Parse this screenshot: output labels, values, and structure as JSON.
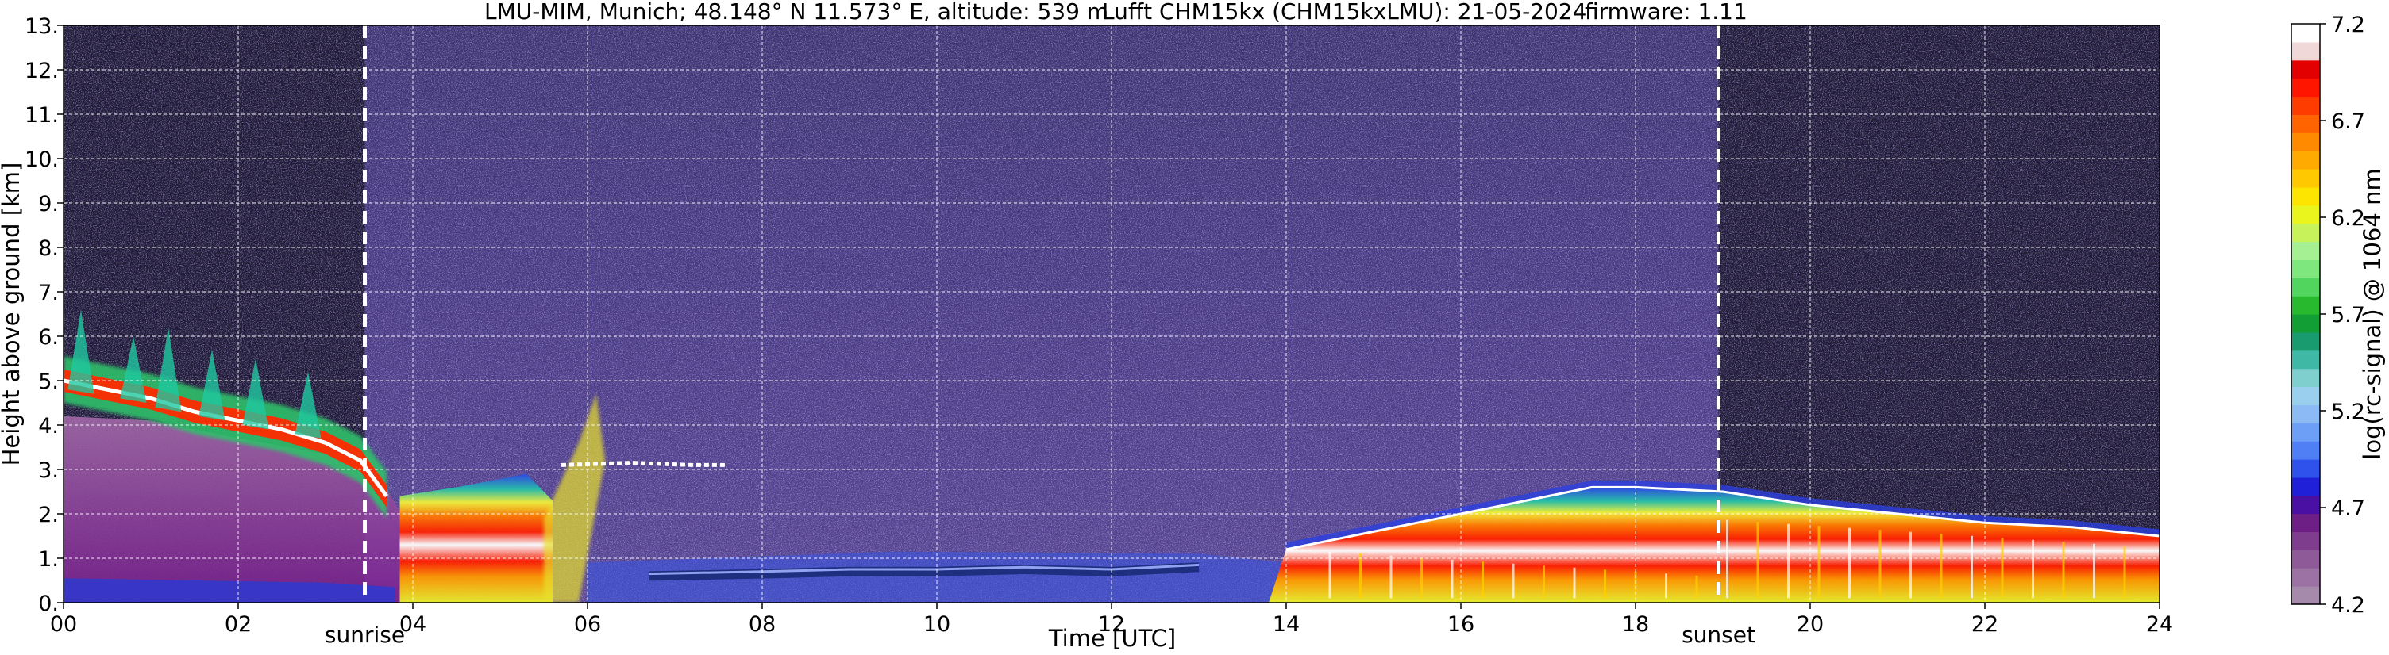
{
  "title": {
    "site": "LMU-MIM, Munich; 48.148° N 11.573° E, altitude: 539 m",
    "instrument": "Lufft CHM15kx (CHM15kxLMU): 21-05-2024",
    "firmware": "firmware: 1.11"
  },
  "chart_data": {
    "type": "heatmap",
    "xlabel": "Time [UTC]",
    "ylabel": "Height above ground [km]",
    "colorbar_label": "log(rc-signal) @ 1064 nm",
    "xlim": [
      0,
      24
    ],
    "ylim": [
      0,
      13
    ],
    "x_ticks": [
      "00",
      "02",
      "04",
      "06",
      "08",
      "10",
      "12",
      "14",
      "16",
      "18",
      "20",
      "22",
      "24"
    ],
    "y_ticks": [
      "0.",
      "1.",
      "2.",
      "3.",
      "4.",
      "5.",
      "6.",
      "7.",
      "8.",
      "9.",
      "10.",
      "11.",
      "12.",
      "13."
    ],
    "grid": true,
    "colorbar": {
      "range": [
        4.2,
        7.2
      ],
      "ticks": [
        "4.2",
        "4.7",
        "5.2",
        "5.7",
        "6.2",
        "6.7",
        "7.2"
      ],
      "colors": [
        "#a58aab",
        "#9b72a3",
        "#8e5a98",
        "#7f3d8d",
        "#6d1f86",
        "#4a0fa3",
        "#2020d8",
        "#2f52ec",
        "#4f7ef5",
        "#6e9ff7",
        "#8cbaf5",
        "#9ad0ee",
        "#7fcfcf",
        "#3fb9a6",
        "#1a9a6f",
        "#129d35",
        "#29b92f",
        "#52d55f",
        "#7ee87f",
        "#a6f094",
        "#c8f25a",
        "#e9f51c",
        "#fee500",
        "#ffc800",
        "#ffaa00",
        "#ff8a00",
        "#ff6400",
        "#ff3c00",
        "#ff1500",
        "#e30000",
        "#f0d8d8",
        "#ffffff"
      ]
    },
    "markers": [
      {
        "label": "sunrise",
        "time": 3.45
      },
      {
        "label": "sunset",
        "time": 18.95
      }
    ],
    "features": [
      {
        "name": "residual aerosol / cloud layer top",
        "time": [
          0.0,
          0.5,
          1.0,
          1.5,
          2.0,
          2.5,
          3.0,
          3.4,
          3.7
        ],
        "height": [
          5.0,
          4.8,
          4.6,
          4.3,
          4.1,
          3.9,
          3.6,
          3.2,
          2.4
        ]
      },
      {
        "name": "convective boundary layer top",
        "time": [
          14.0,
          15.0,
          16.0,
          17.0,
          17.5,
          18.0,
          19.0,
          20.0,
          21.0,
          22.0,
          23.0,
          24.0
        ],
        "height": [
          1.2,
          1.6,
          2.0,
          2.4,
          2.6,
          2.6,
          2.5,
          2.2,
          2.0,
          1.8,
          1.7,
          1.5
        ]
      },
      {
        "name": "low cloud layer",
        "time": [
          6.7,
          8.0,
          9.0,
          10.0,
          11.0,
          12.0,
          13.0
        ],
        "height": [
          0.6,
          0.65,
          0.7,
          0.7,
          0.75,
          0.7,
          0.8
        ]
      }
    ]
  }
}
